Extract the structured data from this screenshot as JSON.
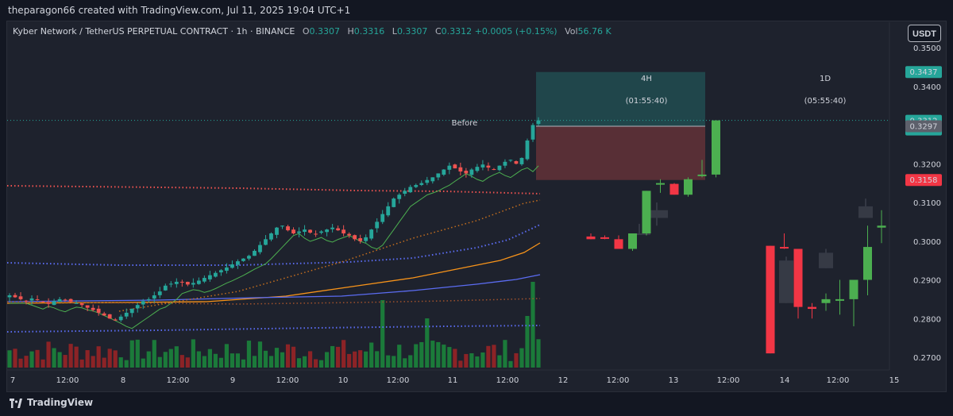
{
  "header": {
    "title": "theparagon66 created with TradingView.com, Jul 11, 2025 19:04 UTC+1"
  },
  "legend": {
    "symbol": "Kyber Network / TetherUS PERPETUAL CONTRACT · 1h · BINANCE",
    "open_label": "O",
    "open": "0.3307",
    "high_label": "H",
    "high": "0.3316",
    "low_label": "L",
    "low": "0.3307",
    "close_label": "C",
    "close": "0.3312",
    "change": "+0.0005 (+0.15%)",
    "vol_label": "Vol",
    "vol": "56.76 K"
  },
  "currency_button": "USDT",
  "brand": "TradingView",
  "colors": {
    "up": "#26a69a",
    "down": "#ef5350",
    "up_ghost": "#4caf50",
    "down_ghost": "#f23645",
    "orange": "#f7931a",
    "blue": "#5b6cf2",
    "red_dots": "#ef5350",
    "background": "#1e222d"
  },
  "chart_data": {
    "type": "candlestick",
    "y_axis": {
      "ticks": [
        "0.3500",
        "0.3400",
        "0.3300",
        "0.3200",
        "0.3100",
        "0.3000",
        "0.2900",
        "0.2800",
        "0.2700"
      ],
      "range": [
        0.265,
        0.356
      ]
    },
    "x_axis": {
      "ticks": [
        "7",
        "12:00",
        "8",
        "12:00",
        "9",
        "12:00",
        "10",
        "12:00",
        "11",
        "12:00",
        "12",
        "12:00",
        "13",
        "12:00",
        "14",
        "12:00",
        "15"
      ]
    },
    "price_labels": [
      {
        "value": "0.3437",
        "color": "#26a69a"
      },
      {
        "value": "0.3312",
        "sub": "55:32",
        "color": "#26a69a"
      },
      {
        "value": "0.3297",
        "color": "#5d606b"
      },
      {
        "value": "0.3158",
        "color": "#f23645"
      }
    ],
    "annotation": "Before",
    "projection_boxes": [
      {
        "label": "4H",
        "timer": "(01:55:40)"
      },
      {
        "label": "1D",
        "timer": "(05:55:40)"
      }
    ],
    "position_tool": {
      "target": 0.3437,
      "entry": 0.3297,
      "stop": 0.3158
    },
    "hourly_close_path": [
      0.286,
      0.2855,
      0.285,
      0.2845,
      0.2852,
      0.2848,
      0.2842,
      0.2838,
      0.2845,
      0.285,
      0.2848,
      0.2843,
      0.284,
      0.2835,
      0.2828,
      0.2822,
      0.2815,
      0.2808,
      0.28,
      0.2795,
      0.2805,
      0.2815,
      0.2825,
      0.2835,
      0.2845,
      0.285,
      0.286,
      0.287,
      0.2885,
      0.289,
      0.2895,
      0.2893,
      0.2888,
      0.2892,
      0.2898,
      0.2905,
      0.2912,
      0.2918,
      0.2925,
      0.2932,
      0.294,
      0.2948,
      0.2955,
      0.2962,
      0.2975,
      0.299,
      0.3005,
      0.302,
      0.3035,
      0.304,
      0.3028,
      0.302,
      0.3025,
      0.303,
      0.3022,
      0.3018,
      0.3025,
      0.303,
      0.3035,
      0.3028,
      0.302,
      0.3015,
      0.3005,
      0.3,
      0.301,
      0.303,
      0.305,
      0.307,
      0.309,
      0.311,
      0.312,
      0.313,
      0.314,
      0.3145,
      0.315,
      0.3158,
      0.3165,
      0.3175,
      0.3185,
      0.3195,
      0.3188,
      0.318,
      0.3175,
      0.3185,
      0.3192,
      0.3198,
      0.319,
      0.3185,
      0.3195,
      0.3205,
      0.321,
      0.32,
      0.3215,
      0.326,
      0.33,
      0.3312
    ],
    "projection_4h": [
      {
        "o": 0.3012,
        "h": 0.302,
        "l": 0.3005,
        "c": 0.3005
      },
      {
        "o": 0.301,
        "h": 0.3015,
        "l": 0.3005,
        "c": 0.3008
      },
      {
        "o": 0.3005,
        "h": 0.3015,
        "l": 0.298,
        "c": 0.298
      },
      {
        "o": 0.298,
        "h": 0.302,
        "l": 0.2975,
        "c": 0.302
      },
      {
        "o": 0.302,
        "h": 0.313,
        "l": 0.3015,
        "c": 0.313
      },
      {
        "o": 0.315,
        "h": 0.316,
        "l": 0.3125,
        "c": 0.315
      },
      {
        "o": 0.3148,
        "h": 0.315,
        "l": 0.312,
        "c": 0.312
      },
      {
        "o": 0.312,
        "h": 0.3165,
        "l": 0.3115,
        "c": 0.316
      },
      {
        "o": 0.317,
        "h": 0.321,
        "l": 0.3165,
        "c": 0.3172
      },
      {
        "o": 0.3172,
        "h": 0.3312,
        "l": 0.3165,
        "c": 0.3312
      }
    ],
    "projection_4h_ghost": [
      {
        "o": 0.302,
        "h": 0.3045,
        "l": 0.302,
        "c": 0.302
      },
      {
        "o": 0.306,
        "h": 0.31,
        "l": 0.304,
        "c": 0.308
      }
    ],
    "projection_1d": [
      {
        "o": 0.2988,
        "h": 0.2988,
        "l": 0.271,
        "c": 0.271
      },
      {
        "o": 0.2985,
        "h": 0.302,
        "l": 0.298,
        "c": 0.2982
      },
      {
        "o": 0.298,
        "h": 0.298,
        "l": 0.28,
        "c": 0.283
      },
      {
        "o": 0.283,
        "h": 0.284,
        "l": 0.28,
        "c": 0.2825
      },
      {
        "o": 0.284,
        "h": 0.2865,
        "l": 0.282,
        "c": 0.285
      },
      {
        "o": 0.285,
        "h": 0.29,
        "l": 0.281,
        "c": 0.285
      },
      {
        "o": 0.285,
        "h": 0.29,
        "l": 0.278,
        "c": 0.29
      },
      {
        "o": 0.29,
        "h": 0.304,
        "l": 0.286,
        "c": 0.2985
      },
      {
        "o": 0.3035,
        "h": 0.308,
        "l": 0.2995,
        "c": 0.304
      },
      {
        "o": 0.3035,
        "h": 0.314,
        "l": 0.3035,
        "c": 0.314
      },
      {
        "o": 0.314,
        "h": 0.3312,
        "l": 0.313,
        "c": 0.3312
      }
    ],
    "projection_1d_ghost": [
      {
        "o": 0.295,
        "h": 0.296,
        "l": 0.284,
        "c": 0.284
      },
      {
        "o": 0.297,
        "h": 0.298,
        "l": 0.293,
        "c": 0.293
      },
      {
        "o": 0.309,
        "h": 0.311,
        "l": 0.306,
        "c": 0.306
      }
    ]
  }
}
